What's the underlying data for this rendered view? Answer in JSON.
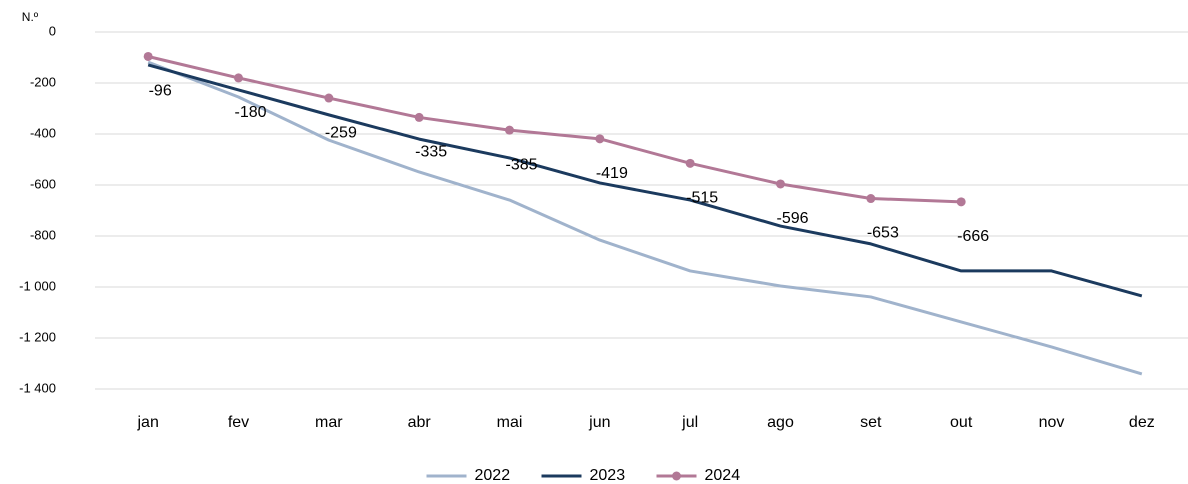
{
  "chart_data": {
    "type": "line",
    "y_label": "N.º",
    "categories": [
      "jan",
      "fev",
      "mar",
      "abr",
      "mai",
      "jun",
      "jul",
      "ago",
      "set",
      "out",
      "nov",
      "dez"
    ],
    "series": [
      {
        "name": "2022",
        "color": "#a0b3cc",
        "values": [
          -118,
          -255,
          -424,
          -549,
          -659,
          -816,
          -937,
          -996,
          -1039,
          -1137,
          -1235,
          -1341
        ]
      },
      {
        "name": "2023",
        "color": "#1b3a5e",
        "values": [
          -129,
          -227,
          -325,
          -420,
          -494,
          -592,
          -659,
          -761,
          -831,
          -937,
          -937,
          -1035
        ]
      },
      {
        "name": "2024",
        "color": "#b27896",
        "markers": true,
        "data_labels": true,
        "values": [
          -96,
          -180,
          -259,
          -335,
          -385,
          -419,
          -515,
          -596,
          -653,
          -666,
          null,
          null
        ]
      }
    ],
    "ylim": [
      -1400,
      0
    ],
    "yticks": [
      0,
      -200,
      -400,
      -600,
      -800,
      {
        "value": -1000,
        "label": "-1 000"
      },
      {
        "value": -1200,
        "label": "-1 200"
      },
      {
        "value": -1400,
        "label": "-1 400"
      }
    ],
    "grid": true,
    "legend": "bottom"
  }
}
